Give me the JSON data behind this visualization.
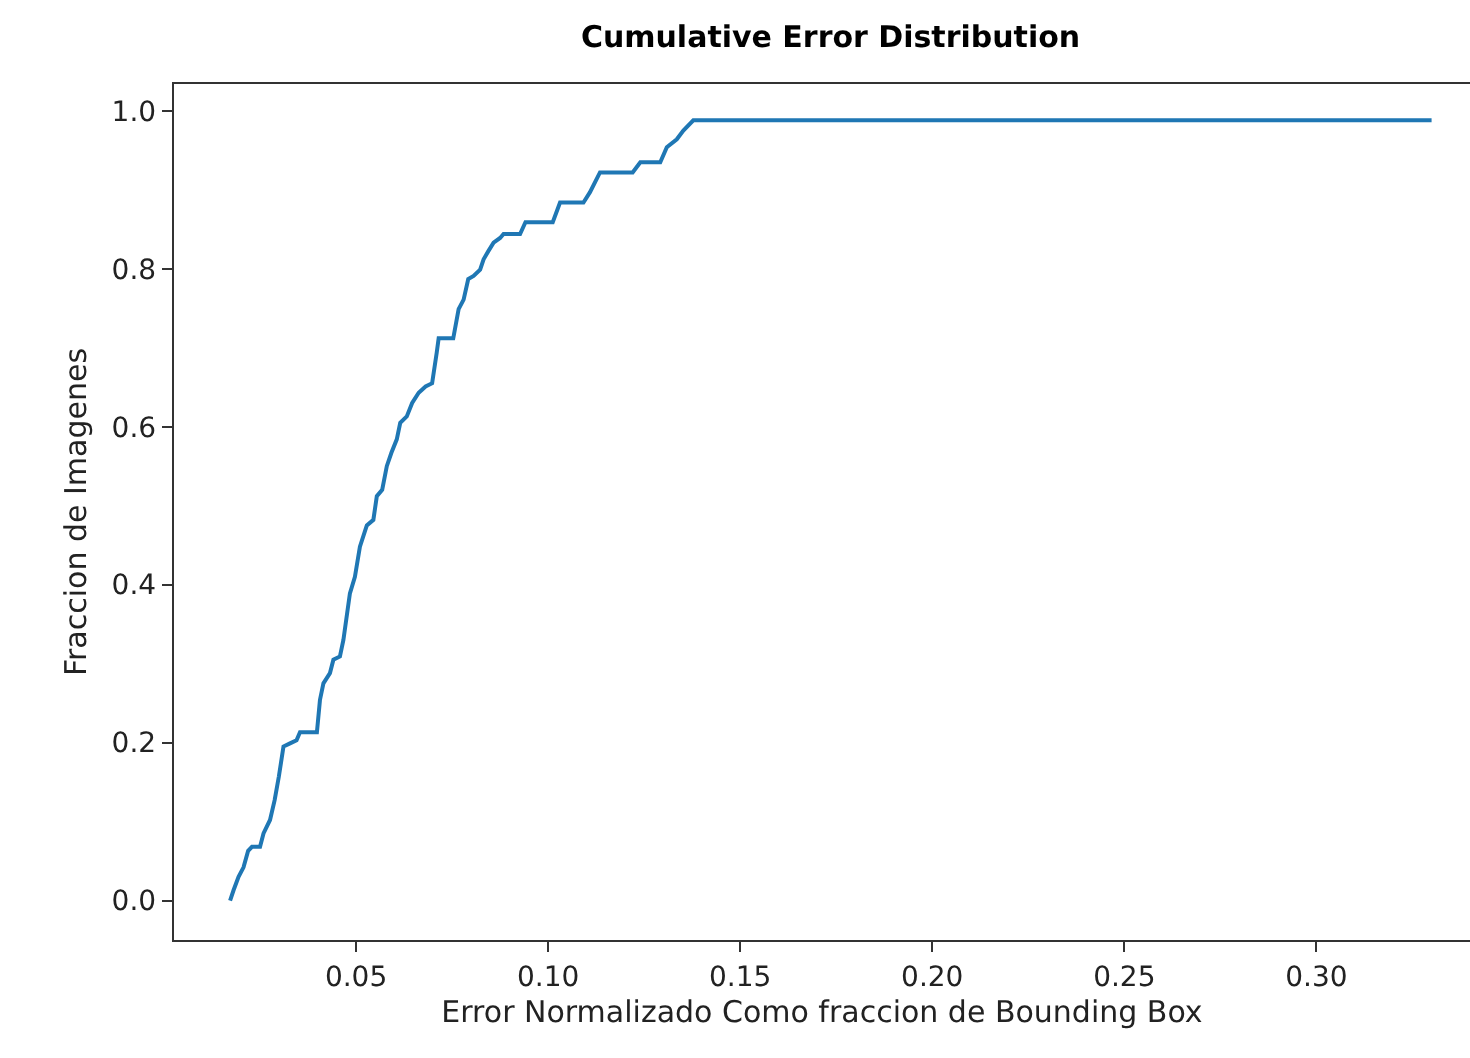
{
  "chart_data": {
    "type": "line",
    "title": "Cumulative Error Distribution",
    "xlabel": "Error Normalizado Como fraccion de Bounding Box",
    "ylabel": "Fraccion de Imagenes",
    "x": [
      0.0172,
      0.0181,
      0.0194,
      0.0207,
      0.0219,
      0.0229,
      0.025,
      0.0259,
      0.0276,
      0.0288,
      0.0299,
      0.0311,
      0.0328,
      0.0345,
      0.0354,
      0.0398,
      0.0406,
      0.0415,
      0.0432,
      0.0441,
      0.0458,
      0.0467,
      0.0484,
      0.0497,
      0.051,
      0.0528,
      0.0545,
      0.0554,
      0.0568,
      0.058,
      0.0592,
      0.0606,
      0.0615,
      0.0632,
      0.0646,
      0.0663,
      0.0681,
      0.0698,
      0.071,
      0.0715,
      0.0753,
      0.0767,
      0.078,
      0.0792,
      0.0806,
      0.0823,
      0.0832,
      0.0844,
      0.0858,
      0.0875,
      0.0884,
      0.0927,
      0.0941,
      0.1012,
      0.1031,
      0.1092,
      0.1109,
      0.1135,
      0.122,
      0.124,
      0.1292,
      0.1309,
      0.1335,
      0.1352,
      0.1378,
      0.33
    ],
    "series": [
      {
        "color": "#1f77b4",
        "values": [
          0,
          0.013,
          0.03,
          0.042,
          0.063,
          0.068,
          0.068,
          0.085,
          0.102,
          0.127,
          0.157,
          0.195,
          0.199,
          0.203,
          0.213,
          0.213,
          0.254,
          0.275,
          0.288,
          0.305,
          0.309,
          0.33,
          0.389,
          0.41,
          0.448,
          0.475,
          0.482,
          0.512,
          0.52,
          0.55,
          0.567,
          0.584,
          0.605,
          0.613,
          0.63,
          0.643,
          0.651,
          0.655,
          0.694,
          0.712,
          0.712,
          0.749,
          0.761,
          0.787,
          0.791,
          0.799,
          0.812,
          0.822,
          0.833,
          0.839,
          0.844,
          0.844,
          0.859,
          0.859,
          0.884,
          0.884,
          0.897,
          0.922,
          0.922,
          0.935,
          0.935,
          0.954,
          0.964,
          0.975,
          0.988,
          0.988
        ]
      }
    ],
    "xlim": [
      0.0026,
      0.34
    ],
    "xticks": [
      {
        "value": 0.05,
        "label": "0.05"
      },
      {
        "value": 0.1,
        "label": "0.10"
      },
      {
        "value": 0.15,
        "label": "0.15"
      },
      {
        "value": 0.2,
        "label": "0.20"
      },
      {
        "value": 0.25,
        "label": "0.25"
      },
      {
        "value": 0.3,
        "label": "0.30"
      }
    ],
    "ylim": [
      -0.05,
      1.034
    ],
    "yticks": [
      {
        "value": 0,
        "label": "0.0"
      },
      {
        "value": 0.2,
        "label": "0.2"
      },
      {
        "value": 0.4,
        "label": "0.4"
      },
      {
        "value": 0.6,
        "label": "0.6"
      },
      {
        "value": 0.8,
        "label": "0.8"
      },
      {
        "value": 1,
        "label": "1.0"
      }
    ],
    "line_style": "solid"
  }
}
